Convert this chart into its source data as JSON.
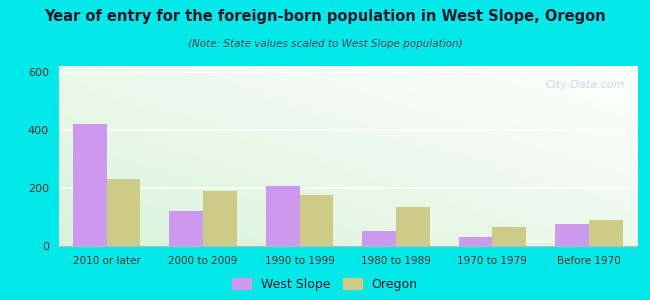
{
  "title": "Year of entry for the foreign-born population in West Slope, Oregon",
  "subtitle": "(Note: State values scaled to West Slope population)",
  "categories": [
    "2010 or later",
    "2000 to 2009",
    "1990 to 1999",
    "1980 to 1989",
    "1970 to 1979",
    "Before 1970"
  ],
  "west_slope": [
    420,
    120,
    205,
    50,
    30,
    75
  ],
  "oregon": [
    230,
    190,
    175,
    135,
    65,
    90
  ],
  "west_slope_color": "#cc99ee",
  "oregon_color": "#cccc88",
  "ylim": [
    0,
    620
  ],
  "yticks": [
    0,
    200,
    400,
    600
  ],
  "bg_outer": "#00e8e8",
  "legend_ws": "West Slope",
  "legend_or": "Oregon",
  "watermark": "City-Data.com",
  "bar_width": 0.35,
  "title_color": "#1a1a2e",
  "subtitle_color": "#444455"
}
